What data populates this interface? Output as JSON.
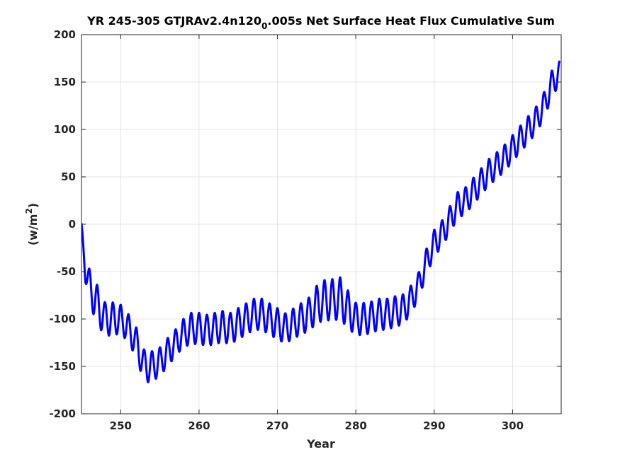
{
  "chart_data": {
    "type": "line",
    "title_main": "YR 245-305 GTJRAv2.4n120",
    "title_subscript": "0",
    "title_rest": ".005s Net Surface Heat Flux  Cumulative Sum",
    "xlabel": "Year",
    "ylabel_text": "(w/m",
    "ylabel_sup": "2",
    "ylabel_close": ")",
    "xlim": [
      245,
      306.2
    ],
    "ylim": [
      -200,
      200
    ],
    "xticks": [
      250,
      260,
      270,
      280,
      290,
      300
    ],
    "yticks": [
      -200,
      -150,
      -100,
      -50,
      0,
      50,
      100,
      150,
      200
    ],
    "grid": true,
    "series_color": "#0000ff",
    "series": [
      {
        "x": [
          245.0,
          245.5,
          246.0,
          247.0,
          248.0,
          249.0,
          250.0,
          251.0,
          252.0,
          253.0,
          254.0,
          255.0,
          256.0,
          257.0,
          258.0,
          259.0,
          260.0,
          261.0,
          262.0,
          263.0,
          264.0,
          265.0,
          266.0,
          267.0,
          268.0,
          269.0,
          270.0,
          271.0,
          272.0,
          273.0,
          274.0,
          275.0,
          276.0,
          277.0,
          278.0,
          279.0,
          280.0,
          281.0,
          282.0,
          283.0,
          284.0,
          285.0,
          286.0,
          287.0,
          288.0,
          289.0,
          290.0,
          291.0,
          292.0,
          293.0,
          294.0,
          295.0,
          296.0,
          297.0,
          298.0,
          299.0,
          300.0,
          301.0,
          302.0,
          303.0,
          304.0,
          305.0,
          306.0
        ],
        "y": [
          0,
          -50,
          -65,
          -85,
          -100,
          -100,
          -100,
          -110,
          -125,
          -150,
          -150,
          -145,
          -135,
          -125,
          -115,
          -110,
          -110,
          -112,
          -110,
          -108,
          -110,
          -105,
          -100,
          -95,
          -95,
          -100,
          -105,
          -110,
          -105,
          -100,
          -95,
          -85,
          -80,
          -80,
          -78,
          -90,
          -100,
          -100,
          -98,
          -95,
          -95,
          -92,
          -90,
          -80,
          -65,
          -40,
          -20,
          -10,
          5,
          20,
          25,
          35,
          45,
          55,
          62,
          70,
          80,
          90,
          100,
          110,
          125,
          148,
          160
        ],
        "amplitude": [
          2,
          22,
          36,
          42,
          35,
          35,
          30,
          30,
          32,
          35,
          32,
          30,
          30,
          28,
          30,
          33,
          33,
          33,
          33,
          33,
          33,
          33,
          33,
          33,
          33,
          33,
          33,
          32,
          32,
          33,
          35,
          40,
          42,
          44,
          44,
          40,
          34,
          34,
          33,
          33,
          33,
          32,
          32,
          30,
          28,
          28,
          28,
          28,
          28,
          28,
          28,
          28,
          28,
          28,
          28,
          28,
          28,
          28,
          28,
          28,
          28,
          28,
          25
        ],
        "period_years": 1
      }
    ]
  }
}
